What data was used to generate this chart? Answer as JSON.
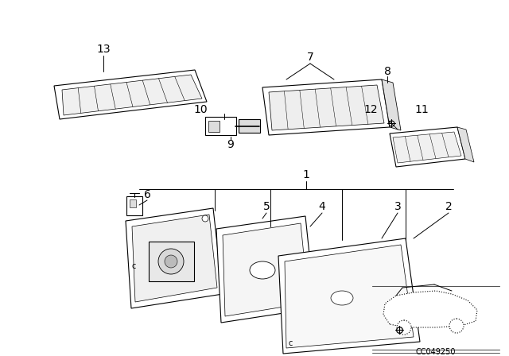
{
  "bg_color": "#ffffff",
  "line_color": "#000000",
  "diagram_code": "CC049250",
  "lw": 0.8,
  "fig_w": 6.4,
  "fig_h": 4.48,
  "dpi": 100
}
